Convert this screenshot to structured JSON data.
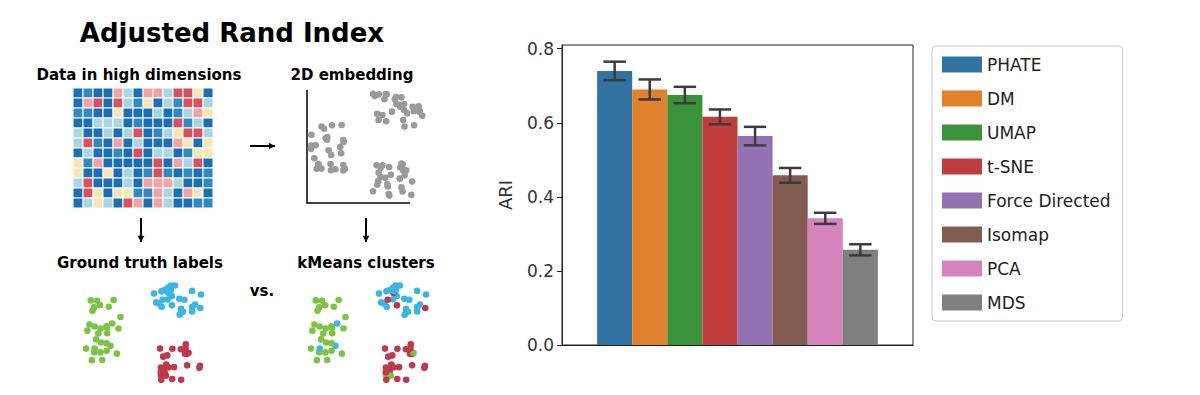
{
  "diagram": {
    "title": "Adjusted Rand Index",
    "panels": {
      "data": "Data in high dimensions",
      "embedding": "2D embedding",
      "truth": "Ground truth labels",
      "clusters": "kMeans clusters",
      "versus": "vs."
    }
  },
  "chart_data": {
    "type": "bar",
    "categories": [
      null
    ],
    "y_label": "ARI",
    "ylim": [
      0,
      0.81
    ],
    "yticks": [
      {
        "value": 0,
        "label": "0.0"
      },
      {
        "value": 0.2,
        "label": "0.2"
      },
      {
        "value": 0.4,
        "label": "0.4"
      },
      {
        "value": 0.6,
        "label": "0.6"
      },
      {
        "value": 0.8,
        "label": "0.8"
      }
    ],
    "tick_labels": "y",
    "grid": false,
    "legend": "right",
    "series": [
      {
        "name": "PHATE",
        "color": "#3274a1",
        "values": [
          0.74
        ],
        "errors": [
          0.025
        ]
      },
      {
        "name": "DM",
        "color": "#e1812c",
        "values": [
          0.69
        ],
        "errors": [
          0.027
        ]
      },
      {
        "name": "UMAP",
        "color": "#3a923a",
        "values": [
          0.675
        ],
        "errors": [
          0.022
        ]
      },
      {
        "name": "t-SNE",
        "color": "#c03d3e",
        "values": [
          0.616
        ],
        "errors": [
          0.02
        ]
      },
      {
        "name": "Force Directed",
        "color": "#9372b2",
        "values": [
          0.564
        ],
        "errors": [
          0.025
        ]
      },
      {
        "name": "Isomap",
        "color": "#845b53",
        "values": [
          0.458
        ],
        "errors": [
          0.02
        ]
      },
      {
        "name": "PCA",
        "color": "#d684bd",
        "values": [
          0.342
        ],
        "errors": [
          0.015
        ]
      },
      {
        "name": "MDS",
        "color": "#7f7f7f",
        "values": [
          0.257
        ],
        "errors": [
          0.015
        ]
      }
    ]
  }
}
